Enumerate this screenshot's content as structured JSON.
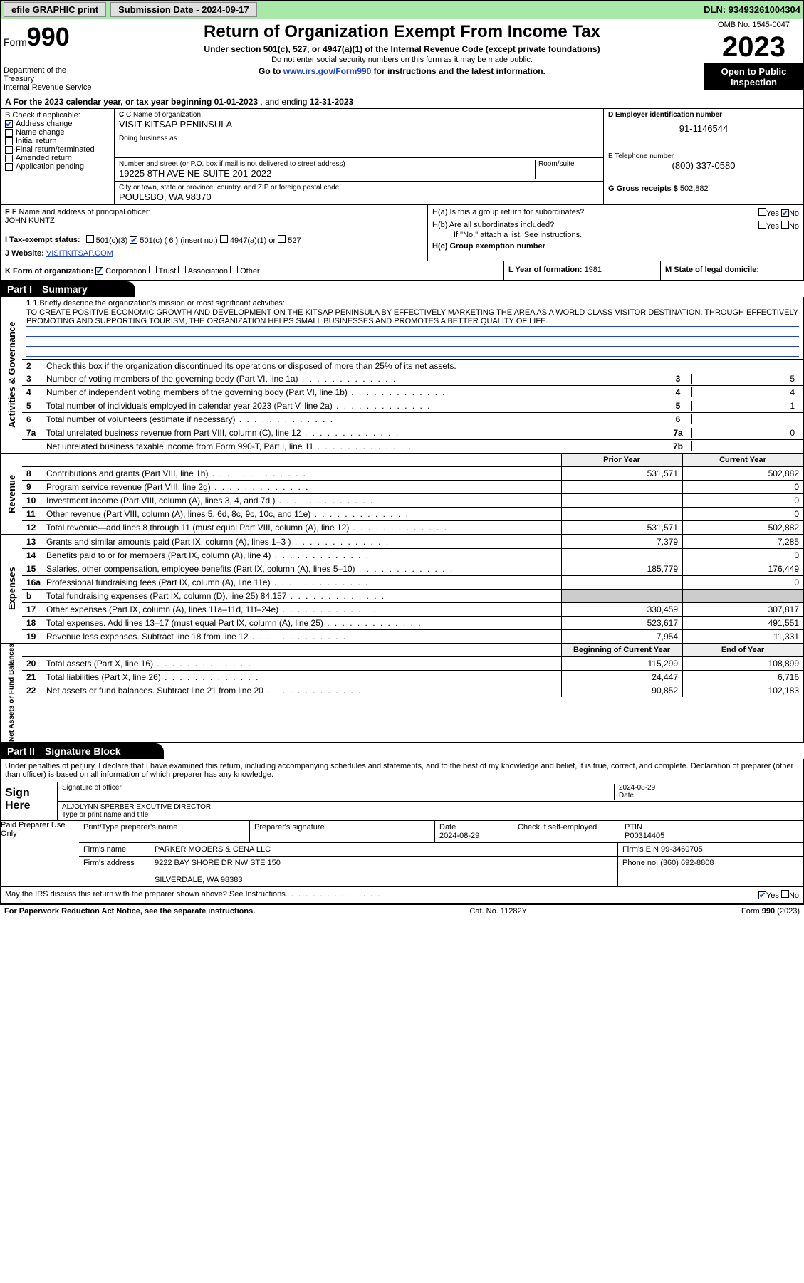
{
  "topbar": {
    "efile": "efile GRAPHIC print",
    "submission_label": "Submission Date - 2024-09-17",
    "dln": "DLN: 93493261004304"
  },
  "header": {
    "form_word": "Form",
    "form_num": "990",
    "dept": "Department of the Treasury",
    "irs": "Internal Revenue Service",
    "title": "Return of Organization Exempt From Income Tax",
    "sub1": "Under section 501(c), 527, or 4947(a)(1) of the Internal Revenue Code (except private foundations)",
    "sub2": "Do not enter social security numbers on this form as it may be made public.",
    "sub3_pre": "Go to ",
    "sub3_link": "www.irs.gov/Form990",
    "sub3_post": " for instructions and the latest information.",
    "omb": "OMB No. 1545-0047",
    "year": "2023",
    "inspect": "Open to Public Inspection"
  },
  "sectionA": {
    "text_pre": "A  For the 2023 calendar year, or tax year beginning ",
    "begin": "01-01-2023",
    "mid": "   , and ending ",
    "end": "12-31-2023"
  },
  "checkB": {
    "label": "B Check if applicable:",
    "items": [
      {
        "label": "Address change",
        "checked": true
      },
      {
        "label": "Name change",
        "checked": false
      },
      {
        "label": "Initial return",
        "checked": false
      },
      {
        "label": "Final return/terminated",
        "checked": false
      },
      {
        "label": "Amended return",
        "checked": false
      },
      {
        "label": "Application pending",
        "checked": false
      }
    ]
  },
  "boxC": {
    "c_label": "C Name of organization",
    "c_val": "VISIT KITSAP PENINSULA",
    "dba_label": "Doing business as",
    "dba_val": "",
    "addr_label": "Number and street (or P.O. box if mail is not delivered to street address)",
    "room_label": "Room/suite",
    "addr_val": "19225 8TH AVE NE SUITE 201-2022",
    "city_label": "City or town, state or province, country, and ZIP or foreign postal code",
    "city_val": "POULSBO, WA  98370"
  },
  "boxD": {
    "label": "D Employer identification number",
    "val": "91-1146544"
  },
  "boxE": {
    "label": "E Telephone number",
    "val": "(800) 337-0580"
  },
  "boxG": {
    "label": "G Gross receipts $ ",
    "val": "502,882"
  },
  "boxF": {
    "label": "F Name and address of principal officer:",
    "val": "JOHN KUNTZ"
  },
  "boxH": {
    "ha": "H(a)  Is this a group return for subordinates?",
    "hb": "H(b)  Are all subordinates included?",
    "hb_note": "If \"No,\" attach a list. See instructions.",
    "hc": "H(c)  Group exemption number",
    "yes": "Yes",
    "no": "No",
    "ha_ans": "No"
  },
  "rowI": {
    "label": "I   Tax-exempt status:",
    "opts": [
      "501(c)(3)",
      "501(c) ( 6 ) (insert no.)",
      "4947(a)(1) or",
      "527"
    ],
    "checked_index": 1
  },
  "rowJ": {
    "label": "J   Website:",
    "val": "VISITKITSAP.COM"
  },
  "rowK": {
    "label": "K Form of organization:",
    "opts": [
      "Corporation",
      "Trust",
      "Association",
      "Other"
    ],
    "checked_index": 0,
    "l_label": "L Year of formation: ",
    "l_val": "1981",
    "m_label": "M State of legal domicile:"
  },
  "part1": {
    "hdr_part": "Part I",
    "hdr_title": "Summary",
    "line1_label": "1   Briefly describe the organization's mission or most significant activities:",
    "mission": "TO CREATE POSITIVE ECONOMIC GROWTH AND DEVELOPMENT ON THE KITSAP PENINSULA BY EFFECTIVELY MARKETING THE AREA AS A WORLD CLASS VISITOR DESTINATION. THROUGH EFFECTIVELY PROMOTING AND SUPPORTING TOURISM, THE ORGANIZATION HELPS SMALL BUSINESSES AND PROMOTES A BETTER QUALITY OF LIFE.",
    "line2": "Check this box       if the organization discontinued its operations or disposed of more than 25% of its net assets.",
    "gov_lines": [
      {
        "n": "3",
        "t": "Number of voting members of the governing body (Part VI, line 1a)",
        "box": "3",
        "v": "5"
      },
      {
        "n": "4",
        "t": "Number of independent voting members of the governing body (Part VI, line 1b)",
        "box": "4",
        "v": "4"
      },
      {
        "n": "5",
        "t": "Total number of individuals employed in calendar year 2023 (Part V, line 2a)",
        "box": "5",
        "v": "1"
      },
      {
        "n": "6",
        "t": "Total number of volunteers (estimate if necessary)",
        "box": "6",
        "v": ""
      },
      {
        "n": "7a",
        "t": "Total unrelated business revenue from Part VIII, column (C), line 12",
        "box": "7a",
        "v": "0"
      },
      {
        "n": "",
        "t": "Net unrelated business taxable income from Form 990-T, Part I, line 11",
        "box": "7b",
        "v": ""
      }
    ],
    "col_hdr_prior": "Prior Year",
    "col_hdr_current": "Current Year",
    "rev_label": "Revenue",
    "rev_lines": [
      {
        "n": "8",
        "t": "Contributions and grants (Part VIII, line 1h)",
        "p": "531,571",
        "c": "502,882"
      },
      {
        "n": "9",
        "t": "Program service revenue (Part VIII, line 2g)",
        "p": "",
        "c": "0"
      },
      {
        "n": "10",
        "t": "Investment income (Part VIII, column (A), lines 3, 4, and 7d )",
        "p": "",
        "c": "0"
      },
      {
        "n": "11",
        "t": "Other revenue (Part VIII, column (A), lines 5, 6d, 8c, 9c, 10c, and 11e)",
        "p": "",
        "c": "0"
      },
      {
        "n": "12",
        "t": "Total revenue—add lines 8 through 11 (must equal Part VIII, column (A), line 12)",
        "p": "531,571",
        "c": "502,882"
      }
    ],
    "exp_label": "Expenses",
    "exp_lines": [
      {
        "n": "13",
        "t": "Grants and similar amounts paid (Part IX, column (A), lines 1–3 )",
        "p": "7,379",
        "c": "7,285"
      },
      {
        "n": "14",
        "t": "Benefits paid to or for members (Part IX, column (A), line 4)",
        "p": "",
        "c": "0"
      },
      {
        "n": "15",
        "t": "Salaries, other compensation, employee benefits (Part IX, column (A), lines 5–10)",
        "p": "185,779",
        "c": "176,449"
      },
      {
        "n": "16a",
        "t": "Professional fundraising fees (Part IX, column (A), line 11e)",
        "p": "",
        "c": "0"
      },
      {
        "n": "b",
        "t": "Total fundraising expenses (Part IX, column (D), line 25) 84,157",
        "p": "gray",
        "c": "gray"
      },
      {
        "n": "17",
        "t": "Other expenses (Part IX, column (A), lines 11a–11d, 11f–24e)",
        "p": "330,459",
        "c": "307,817"
      },
      {
        "n": "18",
        "t": "Total expenses. Add lines 13–17 (must equal Part IX, column (A), line 25)",
        "p": "523,617",
        "c": "491,551"
      },
      {
        "n": "19",
        "t": "Revenue less expenses. Subtract line 18 from line 12",
        "p": "7,954",
        "c": "11,331"
      }
    ],
    "na_label": "Net Assets or Fund Balances",
    "na_hdr_begin": "Beginning of Current Year",
    "na_hdr_end": "End of Year",
    "na_lines": [
      {
        "n": "20",
        "t": "Total assets (Part X, line 16)",
        "p": "115,299",
        "c": "108,899"
      },
      {
        "n": "21",
        "t": "Total liabilities (Part X, line 26)",
        "p": "24,447",
        "c": "6,716"
      },
      {
        "n": "22",
        "t": "Net assets or fund balances. Subtract line 21 from line 20",
        "p": "90,852",
        "c": "102,183"
      }
    ]
  },
  "part2": {
    "hdr_part": "Part II",
    "hdr_title": "Signature Block",
    "declare": "Under penalties of perjury, I declare that I have examined this return, including accompanying schedules and statements, and to the best of my knowledge and belief, it is true, correct, and complete. Declaration of preparer (other than officer) is based on all information of which preparer has any knowledge.",
    "sign_here": "Sign Here",
    "sig_officer_label": "Signature of officer",
    "sig_date": "2024-08-29",
    "sig_date_label": "Date",
    "officer_name": "ALJOLYNN SPERBER  EXCUTIVE DIRECTOR",
    "officer_label": "Type or print name and title",
    "paid_label": "Paid Preparer Use Only",
    "prep_name_label": "Print/Type preparer's name",
    "prep_sig_label": "Preparer's signature",
    "prep_date_label": "Date",
    "prep_date": "2024-08-29",
    "check_if": "Check        if self-employed",
    "ptin_label": "PTIN",
    "ptin": "P00314405",
    "firm_name_label": "Firm's name",
    "firm_name": "PARKER MOOERS & CENA LLC",
    "firm_ein_label": "Firm's EIN",
    "firm_ein": "99-3460705",
    "firm_addr_label": "Firm's address",
    "firm_addr1": "9222 BAY SHORE DR NW STE 150",
    "firm_addr2": "SILVERDALE, WA  98383",
    "phone_label": "Phone no.",
    "phone": "(360) 692-8808",
    "discuss": "May the IRS discuss this return with the preparer shown above? See Instructions.",
    "discuss_yes": "Yes",
    "discuss_no": "No"
  },
  "footer": {
    "l": "For Paperwork Reduction Act Notice, see the separate instructions.",
    "c": "Cat. No. 11282Y",
    "r": "Form 990 (2023)"
  },
  "vlabels": {
    "gov": "Activities & Governance"
  }
}
